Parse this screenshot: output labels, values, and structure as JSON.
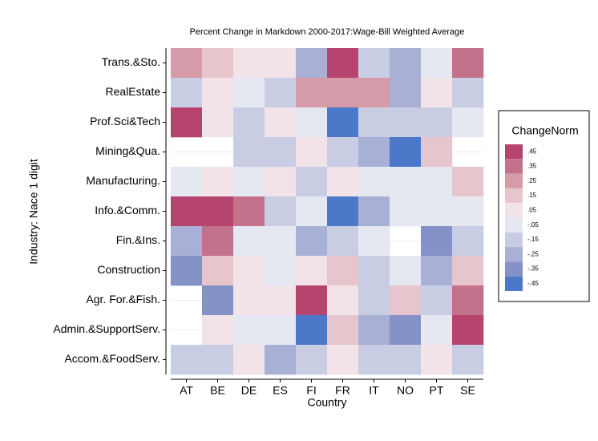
{
  "chart_data": {
    "type": "heatmap",
    "title": "Percent Change in Markdown 2000-2017:Wage-Bill Weighted Average",
    "x_label": "Country",
    "y_label": "Industry: Nace 1 digit",
    "x_categories": [
      "AT",
      "BE",
      "DE",
      "ES",
      "FI",
      "FR",
      "IT",
      "NO",
      "PT",
      "SE"
    ],
    "y_categories": [
      "Trans.&Sto.",
      "RealEstate",
      "Prof.Sci&Tech",
      "Mining&Qua.",
      "Manufacturing.",
      "Info.&Comm.",
      "Fin.&Ins.",
      "Construction",
      "Agr. For.&Fish.",
      "Admin.&SupportServ.",
      "Accom.&FoodServ."
    ],
    "values": [
      [
        0.25,
        0.15,
        0.05,
        0.05,
        -0.25,
        0.45,
        -0.15,
        -0.25,
        -0.05,
        0.35
      ],
      [
        -0.15,
        0.05,
        -0.05,
        -0.15,
        0.25,
        0.25,
        0.25,
        -0.25,
        0.05,
        -0.15
      ],
      [
        0.45,
        0.05,
        -0.15,
        0.05,
        -0.05,
        -0.45,
        -0.15,
        -0.15,
        -0.15,
        -0.05
      ],
      [
        null,
        null,
        -0.15,
        -0.15,
        0.05,
        -0.15,
        -0.25,
        -0.45,
        0.15,
        null
      ],
      [
        -0.05,
        0.05,
        -0.05,
        0.05,
        -0.15,
        0.05,
        -0.05,
        -0.05,
        -0.05,
        0.15
      ],
      [
        0.45,
        0.45,
        0.35,
        -0.15,
        -0.05,
        -0.45,
        -0.25,
        -0.05,
        -0.05,
        -0.05
      ],
      [
        -0.25,
        0.35,
        -0.05,
        -0.05,
        -0.25,
        -0.15,
        -0.05,
        null,
        -0.35,
        -0.15
      ],
      [
        -0.35,
        0.15,
        0.05,
        -0.05,
        0.05,
        0.15,
        -0.15,
        -0.05,
        -0.25,
        0.15
      ],
      [
        null,
        -0.35,
        0.05,
        0.05,
        0.45,
        0.05,
        -0.15,
        0.15,
        -0.15,
        0.35
      ],
      [
        null,
        0.05,
        -0.05,
        -0.05,
        -0.45,
        0.15,
        -0.25,
        -0.35,
        -0.05,
        0.45
      ],
      [
        -0.15,
        -0.15,
        0.05,
        -0.25,
        -0.15,
        0.05,
        -0.15,
        -0.15,
        0.05,
        -0.15
      ]
    ],
    "legend": {
      "title": "ChangeNorm",
      "items": [
        {
          "value": 0.45,
          "label": ".45",
          "color": "#b5456f"
        },
        {
          "value": 0.35,
          "label": ".35",
          "color": "#c4718b"
        },
        {
          "value": 0.25,
          "label": ".25",
          "color": "#d69ba9"
        },
        {
          "value": 0.15,
          "label": ".15",
          "color": "#e7c5cd"
        },
        {
          "value": 0.05,
          "label": ".05",
          "color": "#f1e3e7"
        },
        {
          "value": -0.05,
          "label": "-.05",
          "color": "#e6e8f1"
        },
        {
          "value": -0.15,
          "label": "-.15",
          "color": "#c9cde4"
        },
        {
          "value": -0.25,
          "label": "-.25",
          "color": "#a9b0d6"
        },
        {
          "value": -0.35,
          "label": "-.35",
          "color": "#8592c8"
        },
        {
          "value": -0.45,
          "label": "-.45",
          "color": "#4b78c8"
        }
      ]
    }
  }
}
